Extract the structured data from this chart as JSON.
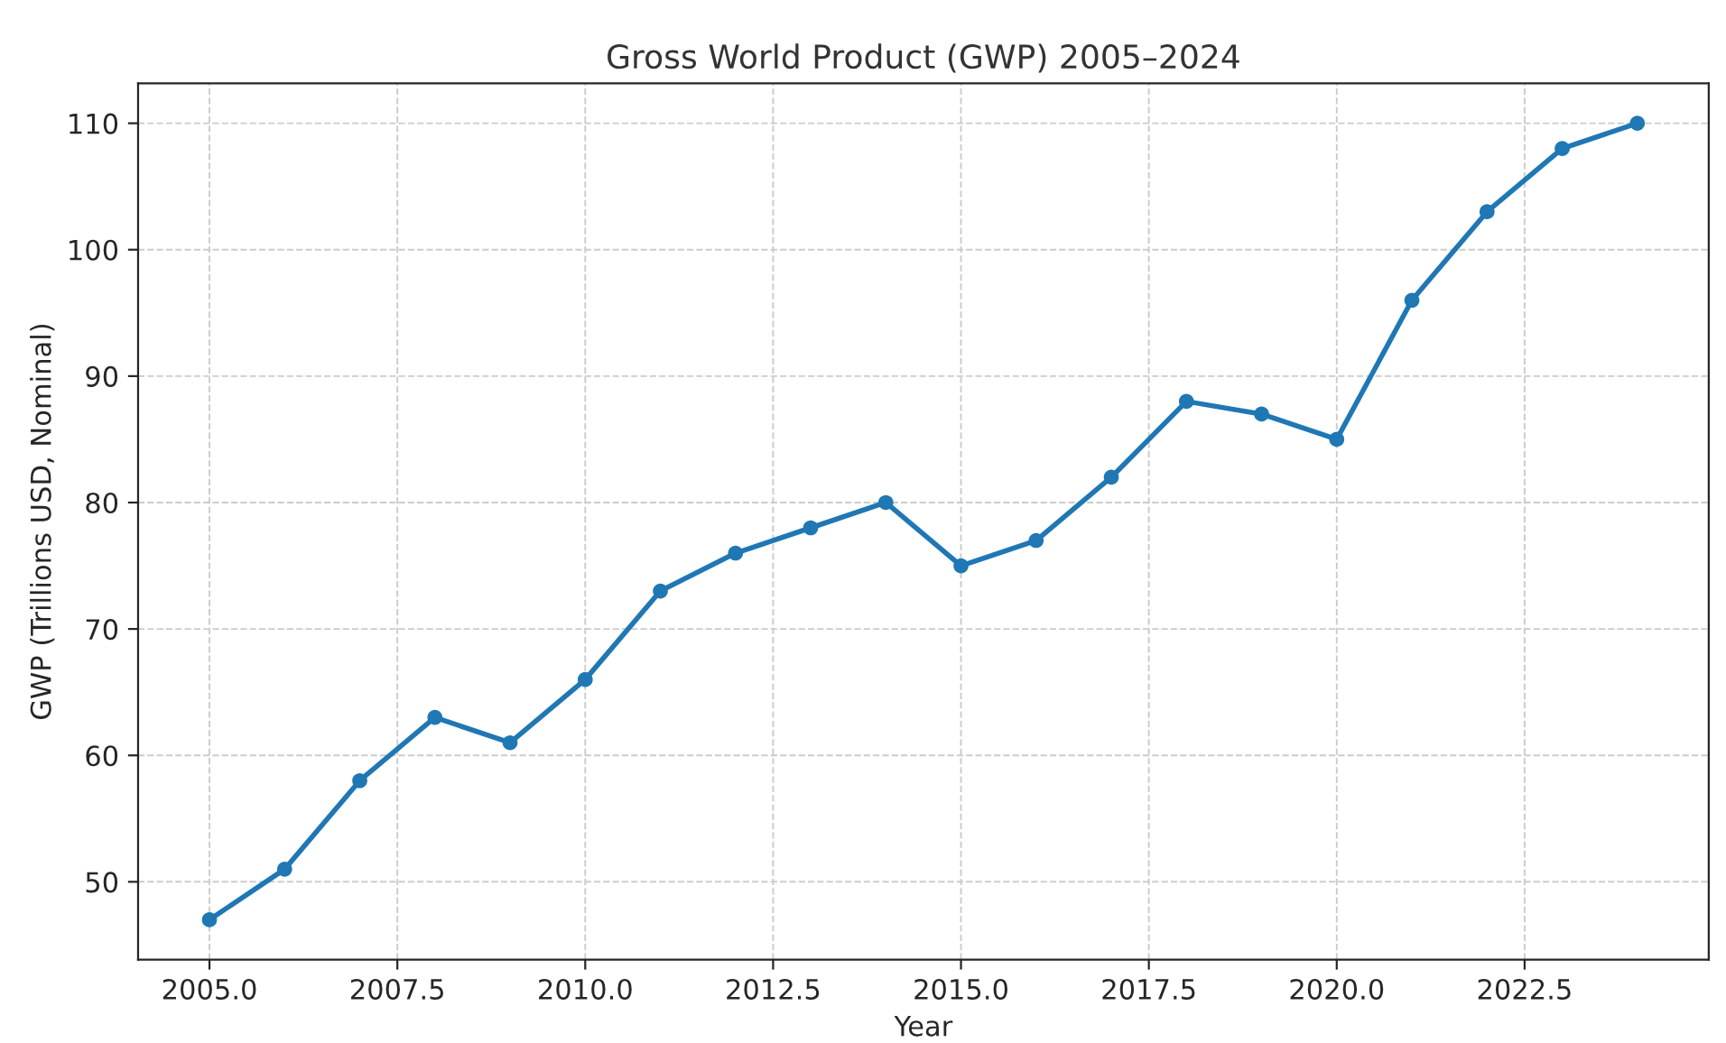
{
  "chart_data": {
    "type": "line",
    "title": "Gross World Product (GWP) 2005–2024",
    "xlabel": "Year",
    "ylabel": "GWP (Trillions USD, Nominal)",
    "x": [
      2005,
      2006,
      2007,
      2008,
      2009,
      2010,
      2011,
      2012,
      2013,
      2014,
      2015,
      2016,
      2017,
      2018,
      2019,
      2020,
      2021,
      2022,
      2023,
      2024
    ],
    "series": [
      {
        "color": "#1f77b4",
        "values": [
          47,
          51,
          58,
          63,
          61,
          66,
          73,
          76,
          78,
          80,
          75,
          77,
          82,
          88,
          87,
          85,
          96,
          103,
          108,
          110
        ]
      }
    ],
    "xlim": [
      2004.05,
      2024.95
    ],
    "ylim": [
      43.85,
      113.15
    ],
    "xticks": [
      {
        "value": 2005,
        "label": "2005.0"
      },
      {
        "value": 2007.5,
        "label": "2007.5"
      },
      {
        "value": 2010,
        "label": "2010.0"
      },
      {
        "value": 2012.5,
        "label": "2012.5"
      },
      {
        "value": 2015,
        "label": "2015.0"
      },
      {
        "value": 2017.5,
        "label": "2017.5"
      },
      {
        "value": 2020,
        "label": "2020.0"
      },
      {
        "value": 2022.5,
        "label": "2022.5"
      }
    ],
    "yticks": [
      50,
      60,
      70,
      80,
      90,
      100,
      110
    ],
    "grid": true,
    "marker": "circle",
    "line_style": "solid"
  }
}
